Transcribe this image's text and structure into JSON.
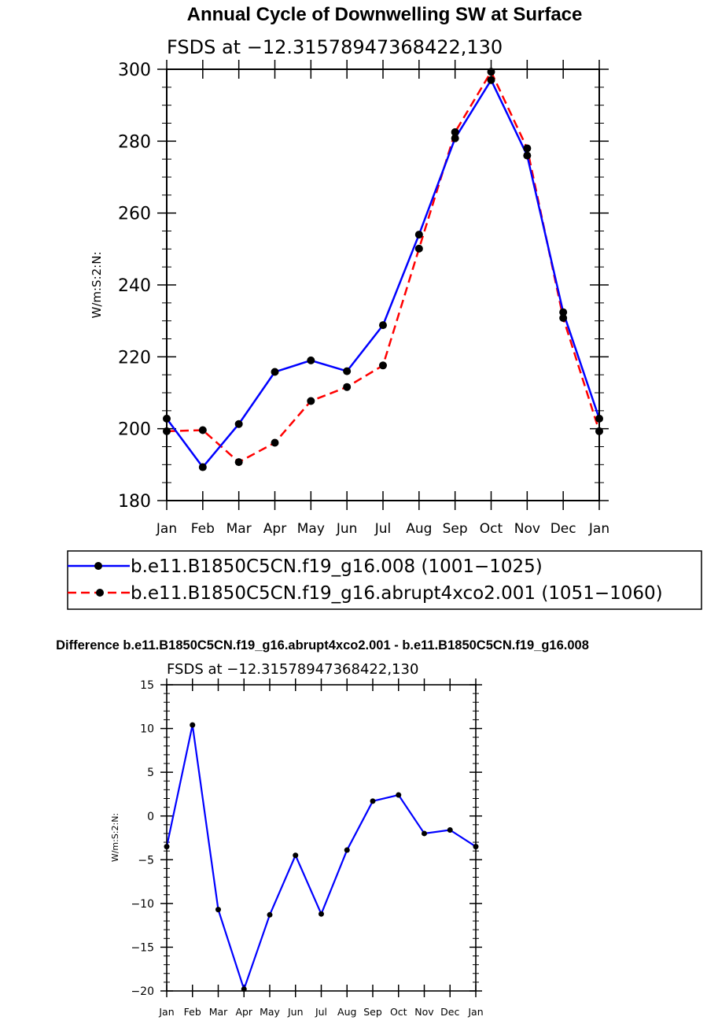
{
  "chart_data": [
    {
      "type": "line",
      "title": "Annual Cycle of Downwelling SW at Surface",
      "subtitle": "FSDS at −12.31578947368422,130",
      "xlabel": "",
      "ylabel": "W/m:S:2:N:",
      "categories": [
        "Jan",
        "Feb",
        "Mar",
        "Apr",
        "May",
        "Jun",
        "Jul",
        "Aug",
        "Sep",
        "Oct",
        "Nov",
        "Dec",
        "Jan"
      ],
      "ylim": [
        180,
        300
      ],
      "yticks": [
        "180",
        "200",
        "220",
        "240",
        "260",
        "280",
        "300"
      ],
      "series": [
        {
          "name": "b.e11.B1850C5CN.f19_g16.008 (1001−1025)",
          "color": "#0000ff",
          "dash": "solid",
          "values": [
            202.8,
            189.3,
            201.3,
            215.8,
            219.0,
            216.0,
            228.8,
            254.0,
            280.8,
            297.0,
            276.0,
            232.4,
            202.8
          ]
        },
        {
          "name": "b.e11.B1850C5CN.f19_g16.abrupt4xco2.001 (1051−1060)",
          "color": "#ff0000",
          "dash": "dashed",
          "values": [
            199.3,
            199.6,
            190.7,
            196.1,
            207.7,
            211.6,
            217.6,
            250.1,
            282.5,
            299.3,
            278.0,
            230.8,
            199.3
          ]
        }
      ]
    },
    {
      "type": "line",
      "title": "Difference b.e11.B1850C5CN.f19_g16.abrupt4xco2.001 - b.e11.B1850C5CN.f19_g16.008",
      "subtitle": "FSDS at −12.31578947368422,130",
      "xlabel": "",
      "ylabel": "W/m:S:2:N:",
      "categories": [
        "Jan",
        "Feb",
        "Mar",
        "Apr",
        "May",
        "Jun",
        "Jul",
        "Aug",
        "Sep",
        "Oct",
        "Nov",
        "Dec",
        "Jan"
      ],
      "ylim": [
        -20,
        15
      ],
      "yticks": [
        "−20",
        "−15",
        "−10",
        "−5",
        "0",
        "5",
        "10",
        "15"
      ],
      "series": [
        {
          "name": "Difference",
          "color": "#0000ff",
          "dash": "solid",
          "values": [
            -3.5,
            10.4,
            -10.7,
            -19.8,
            -11.3,
            -4.5,
            -11.2,
            -3.9,
            1.7,
            2.4,
            -2.0,
            -1.6,
            -3.5
          ]
        }
      ]
    }
  ]
}
